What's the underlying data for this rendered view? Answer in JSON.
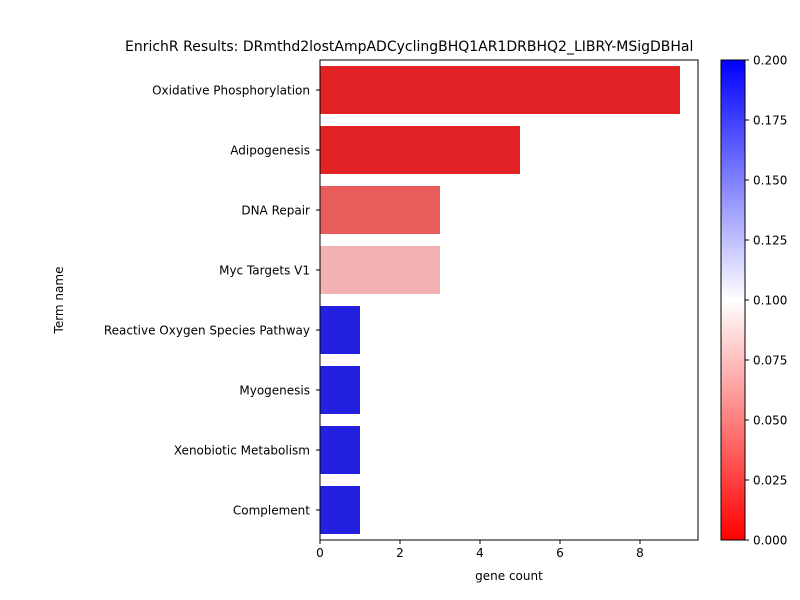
{
  "chart_data": {
    "type": "bar",
    "orientation": "horizontal",
    "title": "EnrichR Results: DRmthd2lostAmpADCyclingBHQ1AR1DRBHQ2_LIBRY-MSigDBHal",
    "xlabel": "gene count",
    "ylabel": "Term name",
    "xlim": [
      0,
      9.45
    ],
    "xticks": [
      "0",
      "2",
      "4",
      "6",
      "8"
    ],
    "categories": [
      "Oxidative Phosphorylation",
      "Adipogenesis",
      "DNA Repair",
      "Myc Targets V1",
      "Reactive Oxygen Species Pathway",
      "Myogenesis",
      "Xenobiotic Metabolism",
      "Complement"
    ],
    "values": [
      9,
      5,
      3,
      3,
      1,
      1,
      1,
      1
    ],
    "bar_colors": [
      "#e32226",
      "#e32226",
      "#e85c5c",
      "#f2b1b3",
      "#2420e0",
      "#2420e0",
      "#2420e0",
      "#2420e0"
    ],
    "colorbar": {
      "min": 0.0,
      "max": 0.2,
      "ticks": [
        "0.000",
        "0.025",
        "0.050",
        "0.075",
        "0.100",
        "0.125",
        "0.150",
        "0.175",
        "0.200"
      ],
      "colormap": [
        "#ff0000",
        "#ffffff",
        "#0000ff"
      ]
    },
    "grid": false
  }
}
